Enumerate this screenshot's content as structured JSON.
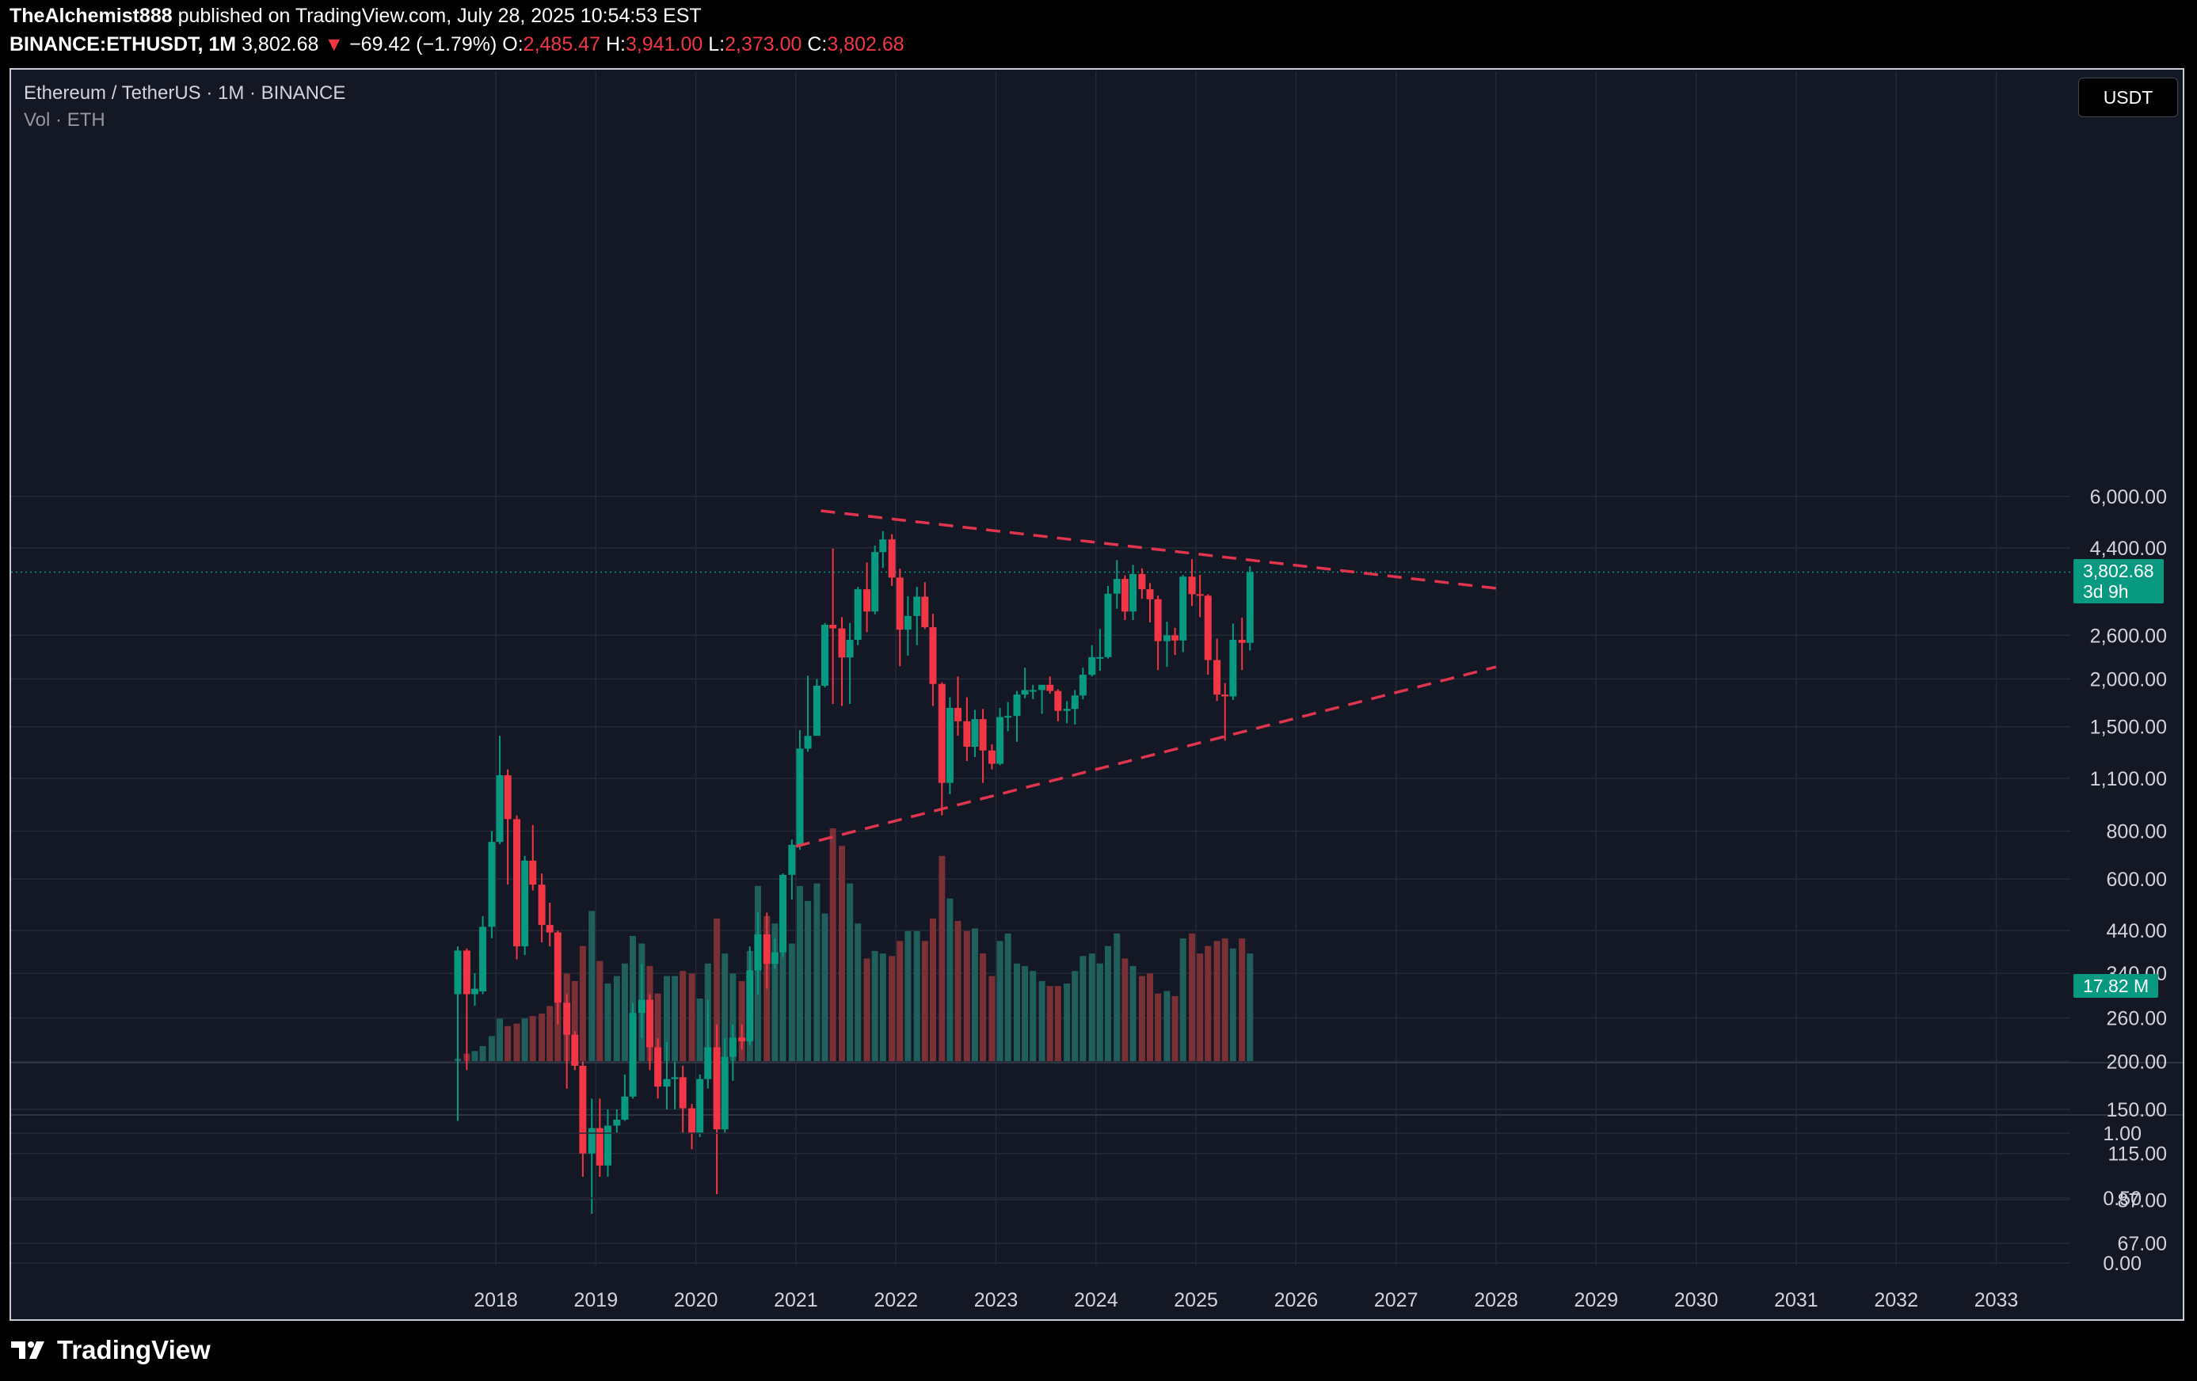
{
  "header": {
    "author": "TheAlchemist888",
    "published_text": "published on TradingView.com, July 28, 2025 10:54:53 EST",
    "symbol": "BINANCE:ETHUSDT, 1M",
    "last": "3,802.68",
    "change_arrow": "▼",
    "change": "−69.42 (−1.79%)",
    "open_label": "O:",
    "open": "2,485.47",
    "high_label": "H:",
    "high": "3,941.00",
    "low_label": "L:",
    "low": "2,373.00",
    "close_label": "C:",
    "close": "3,802.68"
  },
  "legend": {
    "title": "Ethereum / TetherUS · 1M · BINANCE",
    "volume": "Vol · ETH"
  },
  "currency_button": "USDT",
  "price_tag": {
    "price": "3,802.68",
    "countdown": "3d 9h"
  },
  "volume_tag": "17.82 M",
  "colors": {
    "up": "#089981",
    "down": "#f23645",
    "trendline": "#e0344f",
    "background": "#141824",
    "up_volume": "#1f5f5c",
    "down_volume": "#7b3036"
  },
  "footer": {
    "brand": "TradingView",
    "logo_icon": "tradingview-logo-icon"
  },
  "chart_data": {
    "type": "candlestick",
    "timeframe": "1M",
    "scale": "log",
    "y_ticks": [
      "6,000.00",
      "4,400.00",
      "2,600.00",
      "2,000.00",
      "1,500.00",
      "1,100.00",
      "800.00",
      "600.00",
      "440.00",
      "340.00",
      "260.00",
      "200.00",
      "150.00",
      "115.00",
      "87.00",
      "67.00"
    ],
    "y_tick_values": [
      6000,
      4400,
      2600,
      2000,
      1500,
      1100,
      800,
      600,
      440,
      340,
      260,
      200,
      150,
      115,
      87,
      67
    ],
    "x_ticks": [
      "2018",
      "2019",
      "2020",
      "2021",
      "2022",
      "2023",
      "2024",
      "2025",
      "2026",
      "2027",
      "2028",
      "2029",
      "2030",
      "2031",
      "2032",
      "2033"
    ],
    "indicator_ticks": [
      "1.00",
      "0.50",
      "0.00"
    ],
    "current_price": 3802.68,
    "candles": [
      [
        2017.62,
        300,
        400,
        140,
        390
      ],
      [
        2017.71,
        390,
        395,
        190,
        300
      ],
      [
        2017.79,
        300,
        340,
        280,
        310
      ],
      [
        2017.87,
        305,
        480,
        300,
        450
      ],
      [
        2017.96,
        450,
        800,
        420,
        750
      ],
      [
        2018.04,
        750,
        1420,
        740,
        1120
      ],
      [
        2018.12,
        1120,
        1160,
        580,
        860
      ],
      [
        2018.21,
        860,
        880,
        370,
        400
      ],
      [
        2018.29,
        400,
        690,
        380,
        670
      ],
      [
        2018.37,
        670,
        830,
        560,
        580
      ],
      [
        2018.46,
        580,
        620,
        410,
        455
      ],
      [
        2018.54,
        455,
        520,
        400,
        435
      ],
      [
        2018.62,
        435,
        440,
        250,
        285
      ],
      [
        2018.71,
        285,
        300,
        170,
        235
      ],
      [
        2018.79,
        235,
        240,
        190,
        195
      ],
      [
        2018.87,
        195,
        200,
        100,
        115
      ],
      [
        2018.96,
        115,
        160,
        80,
        134
      ],
      [
        2019.04,
        134,
        160,
        100,
        107
      ],
      [
        2019.12,
        107,
        150,
        100,
        136
      ],
      [
        2019.21,
        136,
        150,
        130,
        141
      ],
      [
        2019.29,
        141,
        185,
        140,
        162
      ],
      [
        2019.37,
        162,
        285,
        160,
        268
      ],
      [
        2019.46,
        268,
        360,
        230,
        290
      ],
      [
        2019.54,
        290,
        300,
        190,
        218
      ],
      [
        2019.62,
        218,
        230,
        160,
        172
      ],
      [
        2019.71,
        172,
        225,
        150,
        180
      ],
      [
        2019.79,
        180,
        200,
        150,
        182
      ],
      [
        2019.87,
        182,
        195,
        130,
        151
      ],
      [
        2019.96,
        151,
        155,
        118,
        130
      ],
      [
        2020.04,
        130,
        185,
        127,
        180
      ],
      [
        2020.12,
        180,
        290,
        170,
        218
      ],
      [
        2020.21,
        218,
        250,
        90,
        133
      ],
      [
        2020.29,
        133,
        230,
        130,
        206
      ],
      [
        2020.37,
        206,
        250,
        178,
        231
      ],
      [
        2020.46,
        231,
        250,
        215,
        226
      ],
      [
        2020.54,
        226,
        400,
        220,
        346
      ],
      [
        2020.62,
        346,
        490,
        300,
        430
      ],
      [
        2020.71,
        430,
        490,
        310,
        360
      ],
      [
        2020.79,
        360,
        420,
        350,
        386
      ],
      [
        2020.87,
        386,
        620,
        375,
        615
      ],
      [
        2020.96,
        615,
        760,
        530,
        737
      ],
      [
        2021.04,
        737,
        1470,
        715,
        1315
      ],
      [
        2021.12,
        1315,
        2040,
        1290,
        1420
      ],
      [
        2021.21,
        1420,
        2000,
        1460,
        1920
      ],
      [
        2021.29,
        1920,
        2800,
        1900,
        2770
      ],
      [
        2021.37,
        2770,
        4380,
        1720,
        2710
      ],
      [
        2021.46,
        2710,
        2900,
        1700,
        2275
      ],
      [
        2021.54,
        2275,
        2800,
        1720,
        2530
      ],
      [
        2021.62,
        2530,
        3480,
        2450,
        3430
      ],
      [
        2021.71,
        3430,
        4030,
        2650,
        3000
      ],
      [
        2021.79,
        3000,
        4460,
        2950,
        4290
      ],
      [
        2021.87,
        4290,
        4870,
        3900,
        4630
      ],
      [
        2021.96,
        4630,
        4780,
        3500,
        3680
      ],
      [
        2022.04,
        3680,
        3880,
        2160,
        2690
      ],
      [
        2022.12,
        2690,
        3290,
        2300,
        2920
      ],
      [
        2022.21,
        2920,
        3480,
        2450,
        3280
      ],
      [
        2022.29,
        3280,
        3580,
        2700,
        2730
      ],
      [
        2022.37,
        2730,
        2960,
        1700,
        1940
      ],
      [
        2022.46,
        1940,
        1960,
        880,
        1070
      ],
      [
        2022.54,
        1070,
        1790,
        1000,
        1680
      ],
      [
        2022.62,
        1680,
        2030,
        1420,
        1550
      ],
      [
        2022.71,
        1550,
        1790,
        1220,
        1330
      ],
      [
        2022.79,
        1330,
        1660,
        1250,
        1570
      ],
      [
        2022.87,
        1570,
        1670,
        1070,
        1300
      ],
      [
        2022.96,
        1300,
        1350,
        1160,
        1200
      ],
      [
        2023.04,
        1200,
        1680,
        1190,
        1590
      ],
      [
        2023.12,
        1590,
        1740,
        1460,
        1600
      ],
      [
        2023.21,
        1600,
        1860,
        1370,
        1820
      ],
      [
        2023.29,
        1820,
        2140,
        1780,
        1870
      ],
      [
        2023.37,
        1870,
        1930,
        1770,
        1870
      ],
      [
        2023.46,
        1870,
        1930,
        1620,
        1930
      ],
      [
        2023.54,
        1930,
        2030,
        1830,
        1860
      ],
      [
        2023.62,
        1860,
        1880,
        1550,
        1650
      ],
      [
        2023.71,
        1650,
        1750,
        1530,
        1670
      ],
      [
        2023.79,
        1670,
        1870,
        1520,
        1810
      ],
      [
        2023.87,
        1810,
        2140,
        1770,
        2050
      ],
      [
        2023.96,
        2050,
        2450,
        2030,
        2280
      ],
      [
        2024.04,
        2280,
        2700,
        2100,
        2280
      ],
      [
        2024.12,
        2280,
        3500,
        2260,
        3340
      ],
      [
        2024.21,
        3340,
        4090,
        3050,
        3650
      ],
      [
        2024.29,
        3650,
        3730,
        2850,
        3000
      ],
      [
        2024.37,
        3000,
        3970,
        2850,
        3760
      ],
      [
        2024.46,
        3760,
        3890,
        3240,
        3430
      ],
      [
        2024.54,
        3430,
        3560,
        2810,
        3230
      ],
      [
        2024.62,
        3230,
        3300,
        2110,
        2510
      ],
      [
        2024.71,
        2510,
        2820,
        2150,
        2600
      ],
      [
        2024.79,
        2600,
        2720,
        2310,
        2520
      ],
      [
        2024.87,
        2520,
        3740,
        2350,
        3700
      ],
      [
        2024.96,
        3700,
        4110,
        3100,
        3330
      ],
      [
        2025.04,
        3330,
        3740,
        2900,
        3300
      ],
      [
        2025.12,
        3300,
        3330,
        2050,
        2240
      ],
      [
        2025.21,
        2240,
        2550,
        1750,
        1820
      ],
      [
        2025.29,
        1820,
        1950,
        1380,
        1800
      ],
      [
        2025.37,
        1800,
        2790,
        1760,
        2530
      ],
      [
        2025.46,
        2530,
        2890,
        2110,
        2485
      ],
      [
        2025.54,
        2485,
        3941,
        2373,
        3802
      ]
    ],
    "volume_heights": [
      0.01,
      0.03,
      0.04,
      0.06,
      0.1,
      0.17,
      0.14,
      0.15,
      0.17,
      0.18,
      0.19,
      0.22,
      0.33,
      0.35,
      0.32,
      0.46,
      0.6,
      0.4,
      0.31,
      0.34,
      0.39,
      0.5,
      0.47,
      0.38,
      0.27,
      0.34,
      0.34,
      0.36,
      0.35,
      0.25,
      0.39,
      0.57,
      0.43,
      0.35,
      0.32,
      0.44,
      0.7,
      0.58,
      0.55,
      0.52,
      0.47,
      0.7,
      0.64,
      0.71,
      0.59,
      0.93,
      0.86,
      0.71,
      0.55,
      0.41,
      0.44,
      0.43,
      0.42,
      0.48,
      0.52,
      0.52,
      0.48,
      0.57,
      0.82,
      0.65,
      0.56,
      0.52,
      0.53,
      0.43,
      0.34,
      0.48,
      0.51,
      0.39,
      0.38,
      0.36,
      0.32,
      0.3,
      0.3,
      0.31,
      0.36,
      0.42,
      0.43,
      0.39,
      0.46,
      0.51,
      0.41,
      0.38,
      0.34,
      0.35,
      0.27,
      0.28,
      0.26,
      0.49,
      0.51,
      0.43,
      0.46,
      0.48,
      0.49,
      0.45,
      0.49,
      0.43
    ],
    "trendlines": [
      {
        "style": "dashed",
        "from": [
          2021.25,
          5500
        ],
        "to": [
          2028.0,
          3450
        ]
      },
      {
        "style": "dashed",
        "from": [
          2021.0,
          730
        ],
        "to": [
          2028.0,
          2150
        ]
      }
    ]
  }
}
